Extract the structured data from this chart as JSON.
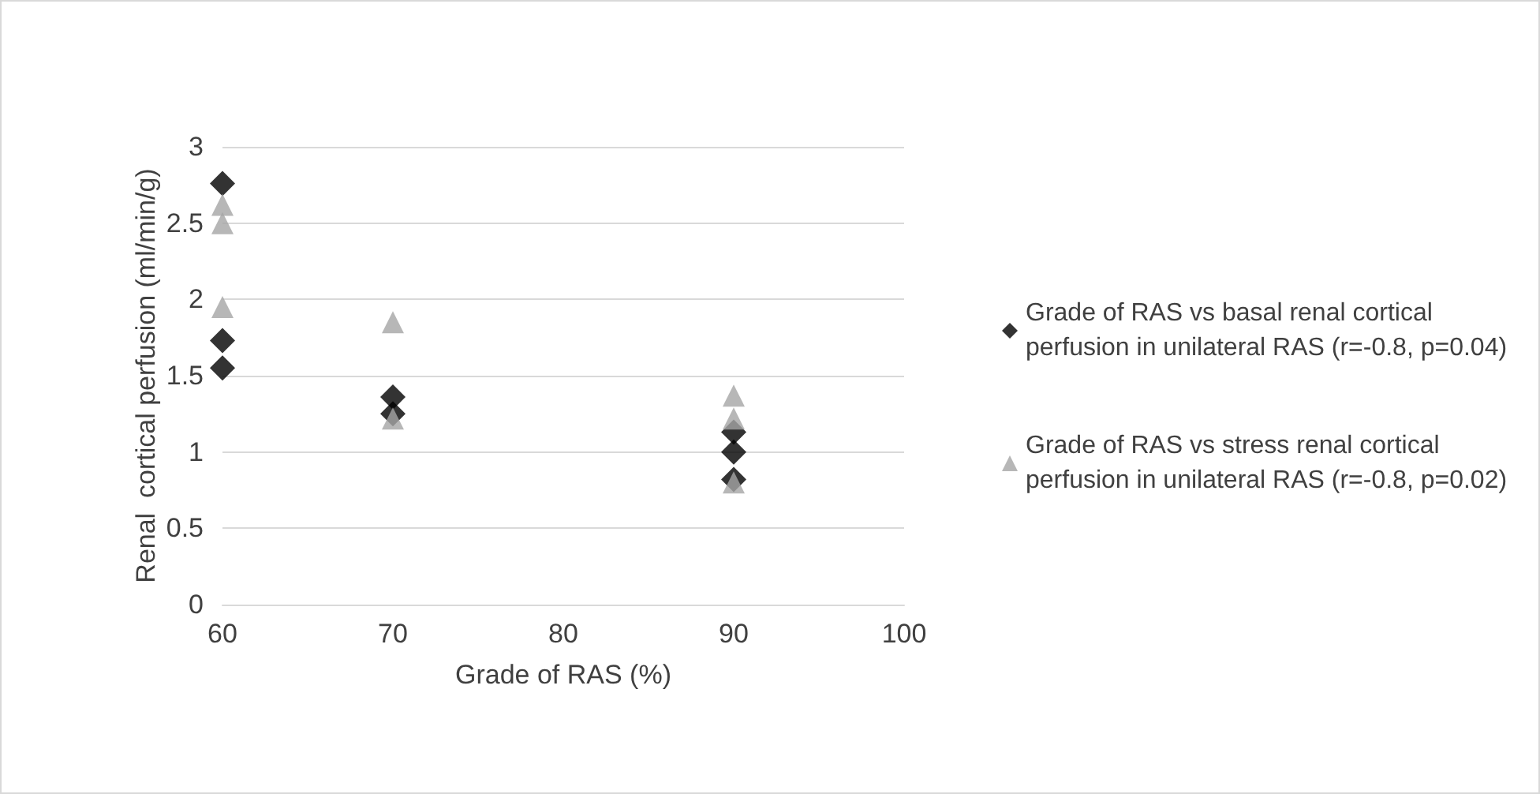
{
  "chart_data": {
    "type": "scatter",
    "xlabel": "Grade of RAS (%)",
    "ylabel": "Renal  cortical perfusion (ml/min/g)",
    "series": [
      {
        "name": "Grade of RAS vs basal renal cortical perfusion in unilateral RAS (r=-0.8, p=0.04)",
        "color": "#000000",
        "marker": "diamond",
        "x": [
          60,
          60,
          60,
          70,
          70,
          90,
          90,
          90
        ],
        "values": [
          2.76,
          1.73,
          1.55,
          1.36,
          1.25,
          1.13,
          1.0,
          0.82
        ]
      },
      {
        "name": "Grade of RAS vs stress renal cortical perfusion in unilateral RAS (r=-0.8, p=0.02)",
        "color": "#a5a5a5",
        "marker": "triangle",
        "x": [
          60,
          60,
          60,
          70,
          70,
          90,
          90,
          90
        ],
        "values": [
          2.62,
          2.5,
          1.95,
          1.85,
          1.22,
          1.37,
          1.22,
          0.8
        ]
      }
    ],
    "xlim": [
      60,
      100
    ],
    "xticks": [
      60,
      70,
      80,
      90,
      100
    ],
    "ylim": [
      0,
      3
    ],
    "yticks": [
      0,
      0.5,
      1,
      1.5,
      2,
      2.5,
      3
    ],
    "grid": "y",
    "legend": "right"
  }
}
